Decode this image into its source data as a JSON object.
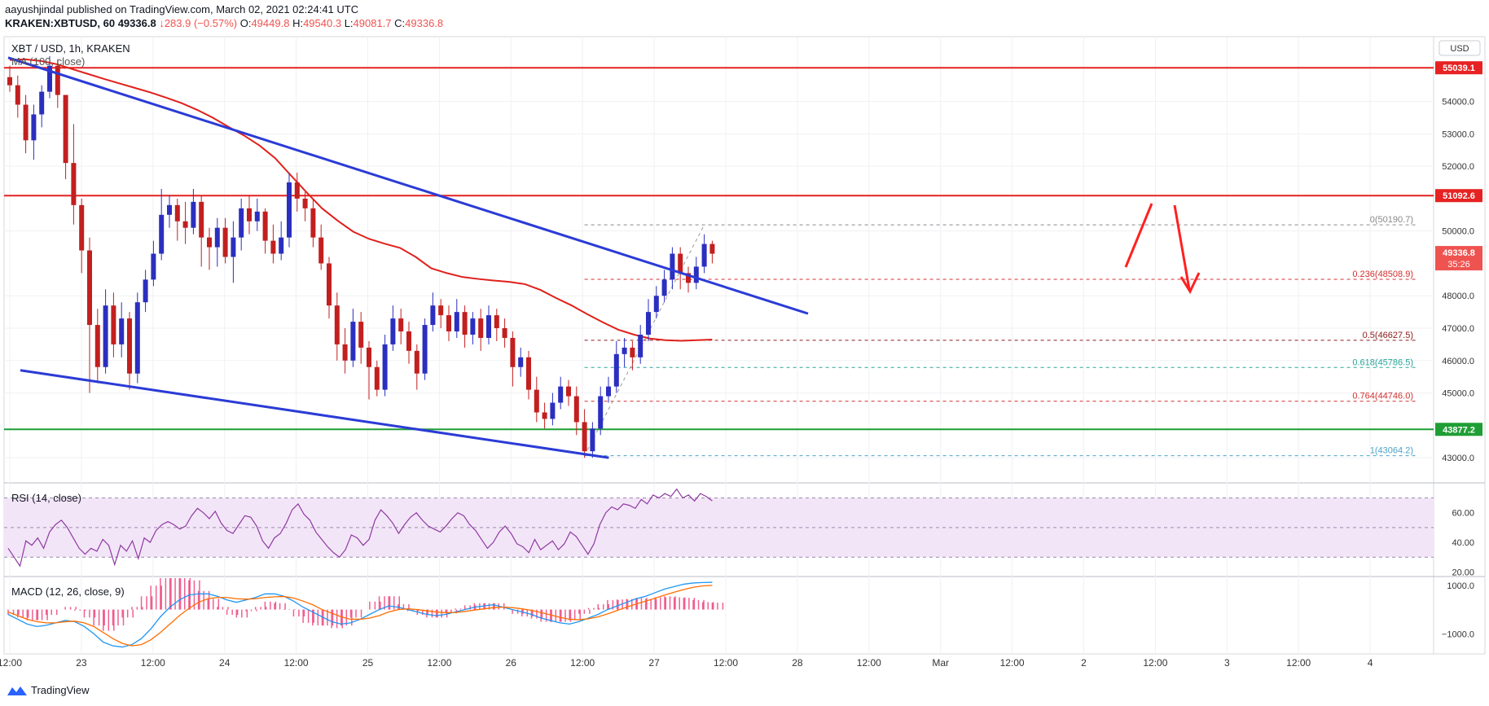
{
  "header": {
    "author": "aayushjindal",
    "published_text": "published on TradingView.com, March 02, 2021 02:24:41 UTC",
    "symbol": "KRAKEN:XBTUSD, 60",
    "last": "49336.8",
    "change": "↓283.9 (−0.57%)",
    "o_label": "O:",
    "o": "49449.8",
    "h_label": "H:",
    "h": "49540.3",
    "l_label": "L:",
    "l": "49081.7",
    "c_label": "C:",
    "c": "49336.8"
  },
  "legend": {
    "pair": "XBT / USD, 1h, KRAKEN",
    "ma": "MA (100, close)",
    "rsi": "RSI (14, close)",
    "macd": "MACD (12, 26, close, 9)"
  },
  "currency": "USD",
  "footer": {
    "brand": "TradingView"
  },
  "colors": {
    "bull": "#2b2fbf",
    "bear": "#c21f1f",
    "ma": "#e0201b",
    "trend": "#2b3bd6",
    "hline_red": "#e62222",
    "hline_green": "#1f9e35",
    "rsi": "#8e3aa1",
    "macd": "#2196f3",
    "signal": "#ff6d00",
    "hist": "#e91e63",
    "arrow": "#ff2020"
  },
  "chart_data": [
    {
      "type": "candlestick",
      "title": "XBT / USD, 1h, KRAKEN",
      "ylim": [
        42300,
        56000
      ],
      "y_ticks": [
        {
          "value": 43000,
          "label": "43000.0"
        },
        {
          "value": 45000,
          "label": "45000.0"
        },
        {
          "value": 46000,
          "label": "46000.0"
        },
        {
          "value": 47000,
          "label": "47000.0"
        },
        {
          "value": 48000,
          "label": "48000.0"
        },
        {
          "value": 50000,
          "label": "50000.0"
        },
        {
          "value": 52000,
          "label": "52000.0"
        },
        {
          "value": 53000,
          "label": "53000.0"
        },
        {
          "value": 54000,
          "label": "54000.0"
        }
      ],
      "x_ticks": [
        "12:00",
        "23",
        "12:00",
        "24",
        "12:00",
        "25",
        "12:00",
        "26",
        "12:00",
        "27",
        "12:00",
        "28",
        "12:00",
        "Mar",
        "12:00",
        "2",
        "12:00",
        "3",
        "12:00",
        "4"
      ],
      "price_labels": [
        {
          "value": 55039.1,
          "label": "55039.1",
          "color": "#e62222"
        },
        {
          "value": 51092.6,
          "label": "51092.6",
          "color": "#e62222"
        },
        {
          "value": 49336.8,
          "label": "49336.8",
          "sub": "35:26",
          "color": "#ef5350"
        },
        {
          "value": 43877.2,
          "label": "43877.2",
          "color": "#1f9e35"
        }
      ],
      "horizontal_lines": [
        {
          "value": 55039.1,
          "color": "#e62222"
        },
        {
          "value": 51092.6,
          "color": "#e62222"
        },
        {
          "value": 43877.2,
          "color": "#1f9e35"
        }
      ],
      "fibonacci": [
        {
          "ratio": "0",
          "value": 50190.7,
          "label": "0(50190.7)",
          "color": "#888888"
        },
        {
          "ratio": "0.236",
          "value": 48508.9,
          "label": "0.236(48508.9)",
          "color": "#d32f2f"
        },
        {
          "ratio": "0.5",
          "value": 46627.5,
          "label": "0.5(46627.5)",
          "color": "#8b1a1a"
        },
        {
          "ratio": "0.618",
          "value": 45786.5,
          "label": "0.618(45786.5)",
          "color": "#26a69a"
        },
        {
          "ratio": "0.764",
          "value": 44746.0,
          "label": "0.764(44746.0)",
          "color": "#d32f2f"
        },
        {
          "ratio": "1",
          "value": 43064.2,
          "label": "1(43064.2)",
          "color": "#4aa3c8"
        }
      ],
      "trendlines": [
        {
          "from": [
            0,
            55300
          ],
          "to": [
            55,
            47500
          ]
        },
        {
          "from": [
            0,
            45700
          ],
          "to": [
            55,
            43000
          ]
        }
      ],
      "ma_100": [
        55280,
        55300,
        55250,
        55150,
        55000,
        54850,
        54700,
        54560,
        54420,
        54280,
        54120,
        53950,
        53740,
        53500,
        53220,
        52950,
        52640,
        52250,
        51720,
        51200,
        50700,
        50320,
        49980,
        49760,
        49610,
        49480,
        49200,
        48850,
        48700,
        48580,
        48520,
        48470,
        48430,
        48360,
        48180,
        47930,
        47700,
        47430,
        47180,
        46950,
        46800,
        46680,
        46630,
        46610,
        46630,
        46650
      ],
      "candles_ohlc": [
        [
          54750,
          54500,
          55100,
          54300
        ],
        [
          54500,
          53900,
          54800,
          53500
        ],
        [
          53900,
          52800,
          54200,
          52400
        ],
        [
          52800,
          53600,
          53900,
          52200
        ],
        [
          53600,
          54300,
          54500,
          53200
        ],
        [
          54300,
          55100,
          55400,
          54100
        ],
        [
          55100,
          54200,
          55300,
          53800
        ],
        [
          54200,
          52100,
          53600,
          51600
        ],
        [
          52100,
          50800,
          53300,
          50200
        ],
        [
          50800,
          49400,
          51000,
          48700
        ],
        [
          49400,
          47100,
          49800,
          45000
        ],
        [
          47100,
          45800,
          47600,
          45300
        ],
        [
          45800,
          47700,
          48200,
          45600
        ],
        [
          47700,
          46500,
          48100,
          46100
        ],
        [
          46500,
          47300,
          47800,
          46100
        ],
        [
          47300,
          45600,
          47500,
          45100
        ],
        [
          45600,
          47800,
          48100,
          45300
        ],
        [
          47800,
          48500,
          48800,
          47500
        ],
        [
          48500,
          49300,
          49700,
          48300
        ],
        [
          49300,
          50500,
          51300,
          49100
        ],
        [
          50500,
          50800,
          51100,
          50100
        ],
        [
          50800,
          50300,
          51000,
          49700
        ],
        [
          50300,
          50100,
          50900,
          49600
        ],
        [
          50100,
          50900,
          51300,
          49900
        ],
        [
          50900,
          49800,
          51100,
          48900
        ],
        [
          49800,
          49500,
          50100,
          48800
        ],
        [
          49500,
          50100,
          50400,
          48900
        ],
        [
          50100,
          49200,
          50400,
          49000
        ],
        [
          49200,
          49800,
          50300,
          48400
        ],
        [
          49800,
          50700,
          51000,
          49400
        ],
        [
          50700,
          50300,
          51100,
          49900
        ],
        [
          50300,
          50600,
          51000,
          50000
        ],
        [
          50600,
          49700,
          50700,
          49300
        ],
        [
          49700,
          49300,
          50200,
          49000
        ],
        [
          49300,
          49800,
          50300,
          49100
        ],
        [
          49800,
          51500,
          51800,
          49500
        ],
        [
          51500,
          51000,
          51800,
          50600
        ],
        [
          51000,
          50700,
          51200,
          50300
        ],
        [
          50700,
          49800,
          51000,
          49500
        ],
        [
          49800,
          49000,
          50200,
          48800
        ],
        [
          49000,
          47700,
          49200,
          47300
        ],
        [
          47700,
          46500,
          48100,
          46000
        ],
        [
          46500,
          46000,
          47000,
          45600
        ],
        [
          46000,
          47200,
          47600,
          45800
        ],
        [
          47200,
          46400,
          47500,
          45900
        ],
        [
          46400,
          45800,
          46600,
          44800
        ],
        [
          45800,
          45100,
          46000,
          44900
        ],
        [
          45100,
          46500,
          46800,
          44900
        ],
        [
          46500,
          47300,
          47700,
          46300
        ],
        [
          47300,
          46900,
          47600,
          46500
        ],
        [
          46900,
          46300,
          47200,
          45900
        ],
        [
          46300,
          45600,
          46500,
          45100
        ],
        [
          45600,
          47100,
          47300,
          45400
        ],
        [
          47100,
          47700,
          48100,
          46900
        ],
        [
          47700,
          47400,
          47900,
          47000
        ],
        [
          47400,
          46900,
          47700,
          46600
        ],
        [
          46900,
          47500,
          47900,
          46700
        ],
        [
          47500,
          46800,
          47700,
          46400
        ],
        [
          46800,
          47300,
          47500,
          46500
        ],
        [
          47300,
          46700,
          47600,
          46300
        ],
        [
          46700,
          47400,
          47700,
          46500
        ],
        [
          47400,
          47000,
          47600,
          46600
        ],
        [
          47000,
          46700,
          47300,
          46400
        ],
        [
          46700,
          45800,
          46900,
          45200
        ],
        [
          45800,
          46100,
          46400,
          45500
        ],
        [
          46100,
          45100,
          46300,
          44800
        ],
        [
          45100,
          44400,
          45500,
          44100
        ],
        [
          44400,
          44200,
          44700,
          43900
        ],
        [
          44200,
          44700,
          45000,
          44000
        ],
        [
          44700,
          45200,
          45500,
          44500
        ],
        [
          45200,
          44900,
          45400,
          44600
        ],
        [
          44900,
          44100,
          45200,
          43700
        ],
        [
          44100,
          43200,
          44500,
          43000
        ],
        [
          43200,
          43900,
          44100,
          43000
        ],
        [
          43900,
          44900,
          45200,
          43700
        ],
        [
          44900,
          45200,
          45500,
          44700
        ],
        [
          45200,
          46200,
          46600,
          45000
        ],
        [
          46200,
          46400,
          46700,
          45800
        ],
        [
          46400,
          46100,
          46600,
          45700
        ],
        [
          46100,
          46800,
          47100,
          45900
        ],
        [
          46800,
          47500,
          47900,
          46600
        ],
        [
          47500,
          48000,
          48300,
          47300
        ],
        [
          48000,
          48500,
          48800,
          47800
        ],
        [
          48500,
          49300,
          49500,
          48200
        ],
        [
          49300,
          48700,
          49500,
          48200
        ],
        [
          48700,
          48400,
          48900,
          48100
        ],
        [
          48400,
          48900,
          49200,
          48200
        ],
        [
          48900,
          49600,
          49900,
          48700
        ],
        [
          49600,
          49300,
          49700,
          49000
        ]
      ]
    },
    {
      "type": "line",
      "title": "RSI (14, close)",
      "ylim": [
        18,
        78
      ],
      "y_ticks": [
        {
          "value": 20,
          "label": "20.00"
        },
        {
          "value": 40,
          "label": "40.00"
        },
        {
          "value": 60,
          "label": "60.00"
        }
      ],
      "band": [
        30,
        70
      ],
      "values": [
        36,
        30,
        24,
        41,
        38,
        43,
        36,
        47,
        52,
        55,
        50,
        43,
        36,
        32,
        36,
        34,
        42,
        38,
        25,
        38,
        34,
        41,
        29,
        43,
        40,
        48,
        52,
        54,
        52,
        49,
        51,
        58,
        63,
        60,
        56,
        61,
        53,
        48,
        46,
        52,
        58,
        57,
        51,
        41,
        36,
        43,
        46,
        53,
        62,
        66,
        59,
        55,
        47,
        42,
        37,
        33,
        30,
        35,
        45,
        43,
        38,
        42,
        55,
        62,
        58,
        53,
        46,
        52,
        57,
        60,
        55,
        51,
        49,
        47,
        51,
        56,
        60,
        58,
        52,
        48,
        42,
        36,
        40,
        47,
        51,
        46,
        39,
        37,
        33,
        42,
        35,
        38,
        41,
        35,
        39,
        47,
        44,
        38,
        32,
        39,
        52,
        60,
        64,
        62,
        66,
        65,
        63,
        69,
        66,
        72,
        70,
        73,
        71,
        76,
        70,
        72,
        68,
        73,
        71,
        68
      ]
    },
    {
      "type": "line",
      "title": "MACD (12, 26, close, 9)",
      "ylim": [
        -1800,
        1300
      ],
      "y_ticks": [
        {
          "value": 1000,
          "label": "1000.0"
        },
        {
          "value": -1000,
          "label": "−1000.0"
        }
      ],
      "series": [
        {
          "name": "MACD",
          "values": [
            -200,
            -400,
            -600,
            -700,
            -650,
            -550,
            -450,
            -500,
            -700,
            -1000,
            -1350,
            -1500,
            -1550,
            -1450,
            -1200,
            -800,
            -300,
            100,
            400,
            600,
            650,
            650,
            550,
            400,
            300,
            400,
            500,
            650,
            650,
            550,
            350,
            100,
            -100,
            -300,
            -500,
            -600,
            -550,
            -400,
            -200,
            0,
            150,
            100,
            0,
            -100,
            -200,
            -250,
            -200,
            -100,
            0,
            100,
            150,
            200,
            100,
            0,
            -100,
            -200,
            -350,
            -450,
            -550,
            -600,
            -500,
            -350,
            -200,
            0,
            150,
            300,
            450,
            550,
            700,
            850,
            950,
            1050,
            1100,
            1120,
            1130
          ]
        },
        {
          "name": "Signal",
          "values": [
            -100,
            -250,
            -400,
            -500,
            -550,
            -550,
            -500,
            -480,
            -550,
            -700,
            -950,
            -1200,
            -1400,
            -1500,
            -1450,
            -1250,
            -950,
            -600,
            -250,
            50,
            300,
            450,
            500,
            500,
            450,
            430,
            450,
            500,
            530,
            540,
            480,
            350,
            200,
            0,
            -150,
            -300,
            -400,
            -400,
            -350,
            -250,
            -100,
            0,
            30,
            0,
            -50,
            -100,
            -130,
            -120,
            -80,
            -20,
            30,
            80,
            100,
            80,
            30,
            -30,
            -120,
            -220,
            -320,
            -400,
            -420,
            -380,
            -300,
            -180,
            -40,
            100,
            230,
            350,
            470,
            600,
            720,
            830,
            920,
            980,
            1000
          ]
        }
      ]
    }
  ]
}
